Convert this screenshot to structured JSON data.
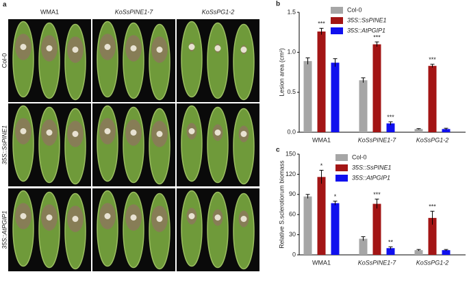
{
  "panel_a": {
    "label": "a",
    "columns": [
      "WMA1",
      "KoSsPINE1-7",
      "KoSsPG1-2"
    ],
    "rows": [
      "Col-0",
      "35S::SsPINE1",
      "35S::AtPGIP1"
    ]
  },
  "chart_data": [
    {
      "type": "bar",
      "panel": "b",
      "ylabel": "Lesion area (cm²)",
      "categories": [
        "WMA1",
        "KoSsPINE1-7",
        "KoSsPG1-2"
      ],
      "series": [
        {
          "name": "Col-0",
          "color": "#a6a6a6",
          "values": [
            0.89,
            0.65,
            0.04
          ],
          "errors": [
            0.04,
            0.03,
            0.005
          ],
          "significance": [
            null,
            null,
            null
          ]
        },
        {
          "name": "35S::SsPINE1",
          "color": "#a31515",
          "values": [
            1.26,
            1.1,
            0.83
          ],
          "errors": [
            0.04,
            0.03,
            0.02
          ],
          "significance": [
            "***",
            "***",
            "***"
          ]
        },
        {
          "name": "35S::AtPGIP1",
          "color": "#1010ee",
          "values": [
            0.87,
            0.11,
            0.04
          ],
          "errors": [
            0.05,
            0.02,
            0.01
          ],
          "significance": [
            null,
            "***",
            null
          ]
        }
      ],
      "ylim": [
        0,
        1.5
      ],
      "yticks": [
        {
          "value": 0,
          "label": "0.0"
        },
        {
          "value": 0.5,
          "label": "0.5"
        },
        {
          "value": 1,
          "label": "1.0"
        },
        {
          "value": 1.5,
          "label": "1.5"
        }
      ]
    },
    {
      "type": "bar",
      "panel": "c",
      "ylabel": "Relative S.sclerotiorum biomass",
      "categories": [
        "WMA1",
        "KoSsPINE1-7",
        "KoSsPG1-2"
      ],
      "series": [
        {
          "name": "Col-0",
          "color": "#a6a6a6",
          "values": [
            87,
            24,
            7
          ],
          "errors": [
            3,
            3,
            1
          ],
          "significance": [
            null,
            null,
            null
          ]
        },
        {
          "name": "35S::SsPINE1",
          "color": "#a31515",
          "values": [
            116,
            76,
            55
          ],
          "errors": [
            10,
            7,
            10
          ],
          "significance": [
            "*",
            "***",
            "***"
          ]
        },
        {
          "name": "35S::AtPGIP1",
          "color": "#1010ee",
          "values": [
            77,
            10,
            7
          ],
          "errors": [
            3,
            2,
            1
          ],
          "significance": [
            "*",
            "**",
            null
          ]
        }
      ],
      "ylim": [
        0,
        150
      ],
      "yticks": [
        0,
        30,
        60,
        90,
        120,
        150
      ]
    }
  ]
}
